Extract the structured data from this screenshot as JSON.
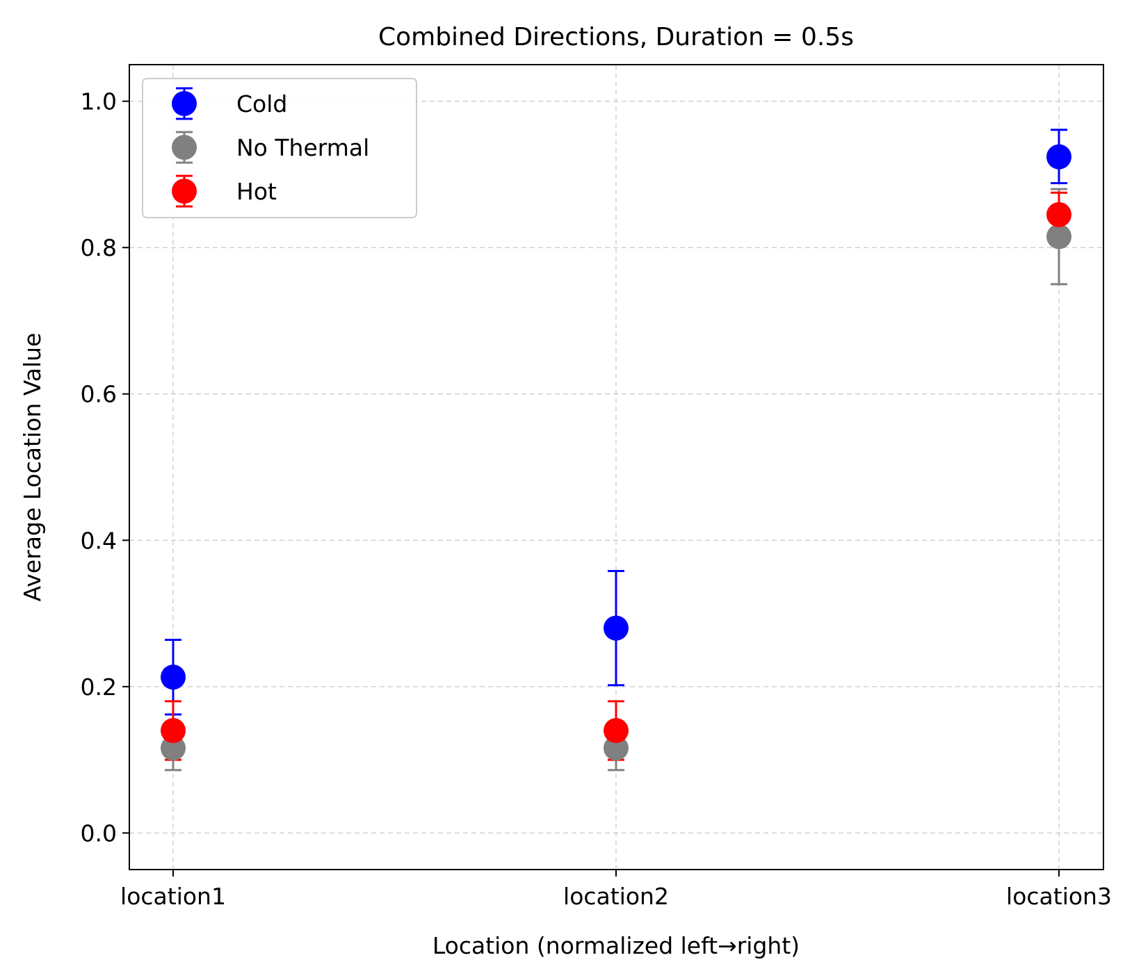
{
  "chart_data": {
    "type": "scatter",
    "title": "Combined Directions, Duration = 0.5s",
    "xlabel": "Location (normalized left→right)",
    "ylabel": "Average Location Value",
    "categories": [
      "location1",
      "location2",
      "location3"
    ],
    "ylim": [
      -0.05,
      1.05
    ],
    "yticks": [
      0.0,
      0.2,
      0.4,
      0.6,
      0.8,
      1.0
    ],
    "ytick_labels": [
      "0.0",
      "0.2",
      "0.4",
      "0.6",
      "0.8",
      "1.0"
    ],
    "grid": true,
    "legend_position": "top-left",
    "series": [
      {
        "name": "Cold",
        "color": "#0000ff",
        "values": [
          0.213,
          0.28,
          0.924
        ],
        "lower": [
          0.162,
          0.202,
          0.888
        ],
        "upper": [
          0.264,
          0.358,
          0.961
        ]
      },
      {
        "name": "No Thermal",
        "color": "#808080",
        "values": [
          0.116,
          0.116,
          0.815
        ],
        "lower": [
          0.086,
          0.086,
          0.75
        ],
        "upper": [
          0.146,
          0.146,
          0.88
        ]
      },
      {
        "name": "Hot",
        "color": "#ff0000",
        "values": [
          0.14,
          0.14,
          0.845
        ],
        "lower": [
          0.1,
          0.1,
          0.815
        ],
        "upper": [
          0.18,
          0.18,
          0.875
        ]
      }
    ]
  }
}
